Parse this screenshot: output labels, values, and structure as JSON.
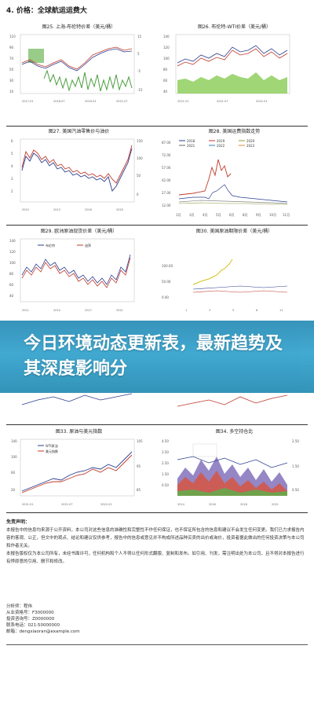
{
  "section": {
    "title": "4. 价格：全球航运运费大"
  },
  "charts": [
    {
      "id": "fig25",
      "title": "图25. 上海-布伦特价差（美元/桶）"
    },
    {
      "id": "fig26",
      "title": "图26. 布伦特-WTI价差（美元/桶）"
    },
    {
      "id": "fig27",
      "title": "图27. 美国汽油零售价与油价"
    },
    {
      "id": "fig28",
      "title": "图28. 美国运费指数走势",
      "legend": [
        "2018",
        "2019",
        "2020",
        "2021",
        "2022",
        "2023"
      ],
      "yticks": [
        "87.00",
        "72.00",
        "57.00",
        "42.00",
        "27.00",
        "12.00"
      ],
      "xticks": [
        "1月",
        "3月",
        "4月",
        "5月",
        "6月",
        "8月",
        "9月",
        "10月",
        "11月"
      ]
    },
    {
      "id": "fig29",
      "title": "图29. 欧洲原油现货价差（美元/桶）",
      "legend": [
        "布伦特",
        "迪拜"
      ]
    },
    {
      "id": "fig30",
      "title": "图30. 美国原油期限价差（美元/桶）"
    },
    {
      "id": "fig33",
      "title": "图33. 原油与美元指数",
      "legend": [
        "WTI原油",
        "美元指数"
      ]
    },
    {
      "id": "fig34",
      "title": "图34. 多空持仓比"
    }
  ],
  "banner": {
    "text": "今日环境动态更新表，最新趋势及其深度影响分"
  },
  "disclaimer": {
    "title": "免责声明：",
    "lines": [
      "本报告中的信息均来源于公开资料，本公司对这些信息的准确性和完整性不作任何保证，也不保证所包含的信息和建议不会发生任何变更。我们已力求报告内容的客观、公正，但文中的观点、结论和建议仅供参考，报告中的信息或意见并不构成所述品种买卖的出价或询价，投资者据此做出的任何投资决策与本公司和作者无关。",
      "本报告版权仅为本公司所有，未经书面许可，任何机构和个人不得以任何形式翻版、复制和发布。如引用、刊发，需注明出处为本公司，且不得对本报告进行有悖原意的引用、删节和修改。"
    ]
  },
  "contact": {
    "lines": [
      "分析师：程伟",
      "从业资格号：F3000000",
      "投资咨询号：Z0000000",
      "联系电话：021-50000000",
      "邮箱：dengxiaoran@example.com"
    ]
  }
}
